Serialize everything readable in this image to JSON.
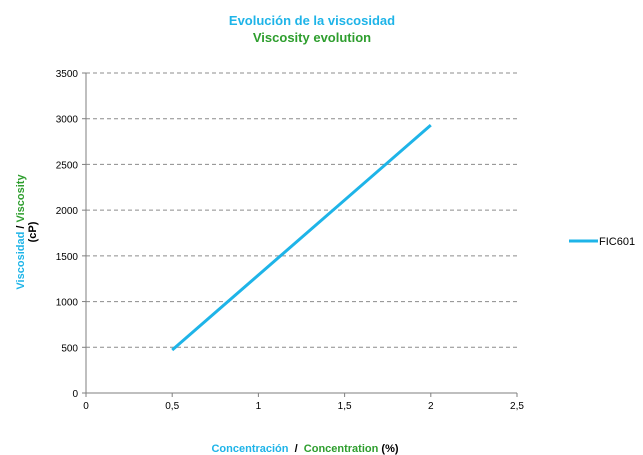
{
  "chart_data": {
    "type": "line",
    "title_es": "Evolución de la  viscosidad",
    "title_en": "Viscosity evolution",
    "xlabel": {
      "es": "Concentración",
      "sep": "  /  ",
      "en": "Concentration",
      "unit": " (%)"
    },
    "ylabel": {
      "es": "Viscosidad",
      "sep": " / ",
      "en": "Viscosity",
      "unit": "(cP)"
    },
    "xlim": [
      0,
      2.5
    ],
    "ylim": [
      0,
      3500
    ],
    "xticks": [
      0,
      0.5,
      1,
      1.5,
      2,
      2.5
    ],
    "xtick_labels": [
      "0",
      "0,5",
      "1",
      "1,5",
      "2",
      "2,5"
    ],
    "yticks": [
      0,
      500,
      1000,
      1500,
      2000,
      2500,
      3000,
      3500
    ],
    "ytick_labels": [
      "0",
      "500",
      "1000",
      "1500",
      "2000",
      "2500",
      "3000",
      "3500"
    ],
    "grid": "horizontal-dashed",
    "legend_position": "right",
    "series": [
      {
        "name": "FIC601",
        "color": "#1EB4E8",
        "x": [
          0.5,
          2.0
        ],
        "y": [
          470,
          2930
        ]
      }
    ],
    "colors": {
      "spanish": "#1EB4E8",
      "english": "#2E9E2E",
      "grid": "#8C8C8C",
      "axis": "#7F7F7F"
    }
  }
}
